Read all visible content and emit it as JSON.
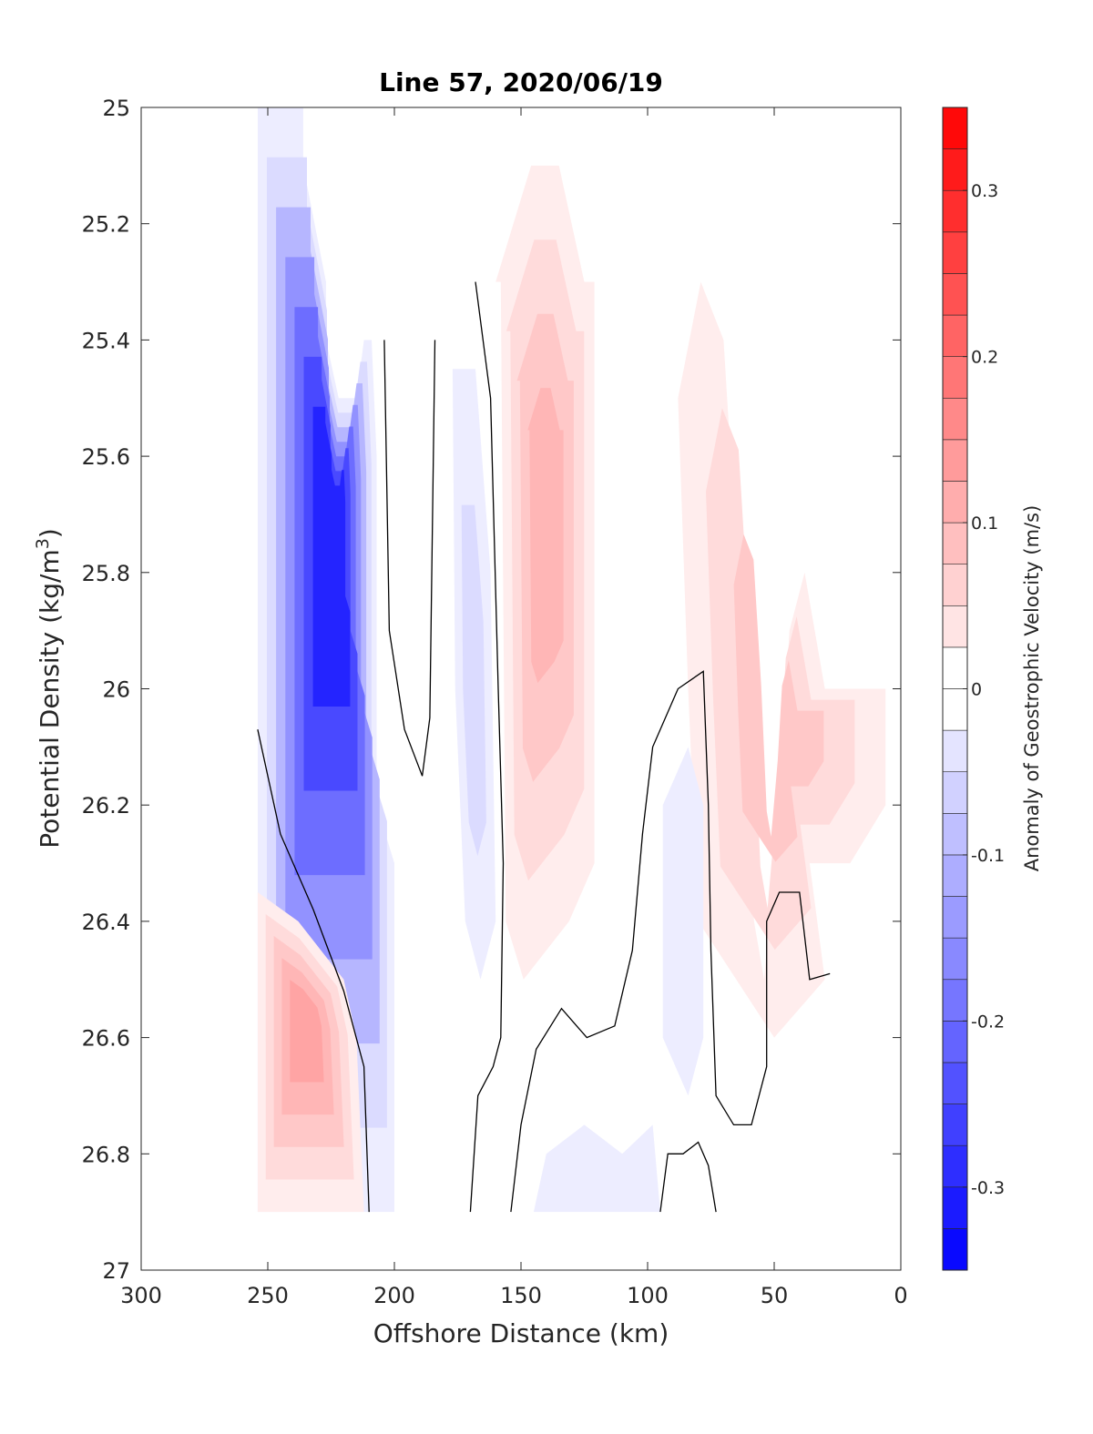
{
  "chart_data": {
    "type": "contourf",
    "title": "Line 57, 2020/06/19",
    "xlabel": "Offshore Distance (km)",
    "ylabel_main": "Potential Density (kg/m",
    "ylabel_sup": "3",
    "ylabel_close": ")",
    "colorbar_label": "Anomaly of Geostrophic Velocity (m/s)",
    "xlim": [
      300,
      0
    ],
    "ylim": [
      25,
      27
    ],
    "x_reversed": true,
    "y_reversed": true,
    "xticks": [
      300,
      250,
      200,
      150,
      100,
      50,
      0
    ],
    "xtick_labels": [
      "300",
      "250",
      "200",
      "150",
      "100",
      "50",
      "0"
    ],
    "yticks": [
      25,
      25.2,
      25.4,
      25.6,
      25.8,
      26,
      26.2,
      26.4,
      26.6,
      26.8,
      27
    ],
    "ytick_labels": [
      "25",
      "25.2",
      "25.4",
      "25.6",
      "25.8",
      "26",
      "26.2",
      "26.4",
      "26.6",
      "26.8",
      "27"
    ],
    "colorbar": {
      "range": [
        -0.35,
        0.35
      ],
      "step": 0.025,
      "ticks": [
        0.3,
        0.2,
        0.1,
        0,
        -0.1,
        -0.2,
        -0.3
      ],
      "tick_labels": [
        "0.3",
        "0.2",
        "0.1",
        "0",
        "-0.1",
        "-0.2",
        "-0.3"
      ],
      "negative_color": "#0000ff",
      "positive_color": "#ff0000",
      "neutral_color": "#ffffff"
    },
    "regions": [
      {
        "name": "offshore-negative-jet",
        "polygon": [
          [
            254,
            25.0
          ],
          [
            236,
            25.0
          ],
          [
            236,
            25.1
          ],
          [
            227,
            25.3
          ],
          [
            227,
            25.4
          ],
          [
            222,
            25.5
          ],
          [
            215,
            25.5
          ],
          [
            212,
            25.4
          ],
          [
            209,
            25.4
          ],
          [
            207,
            25.6
          ],
          [
            207,
            26.2
          ],
          [
            200,
            26.3
          ],
          [
            200,
            26.9
          ],
          [
            254,
            26.9
          ],
          [
            254,
            26.1
          ]
        ],
        "levels": [
          -0.025,
          -0.05,
          -0.1,
          -0.15,
          -0.2,
          -0.25,
          -0.3
        ]
      },
      {
        "name": "offshore-positive-lower",
        "polygon": [
          [
            254,
            26.35
          ],
          [
            254,
            26.9
          ],
          [
            212,
            26.9
          ],
          [
            215,
            26.6
          ],
          [
            220,
            26.5
          ],
          [
            238,
            26.4
          ],
          [
            254,
            26.35
          ]
        ],
        "levels": [
          0.025,
          0.05,
          0.075,
          0.1,
          0.125
        ]
      },
      {
        "name": "nearshore-positive-core",
        "polygon": [
          [
            160,
            25.3
          ],
          [
            146,
            25.1
          ],
          [
            135,
            25.1
          ],
          [
            125,
            25.3
          ],
          [
            121,
            25.3
          ],
          [
            121,
            26.3
          ],
          [
            131,
            26.4
          ],
          [
            149,
            26.5
          ],
          [
            156,
            26.4
          ],
          [
            158,
            25.3
          ]
        ],
        "levels": [
          0.025,
          0.05,
          0.075,
          0.1
        ]
      },
      {
        "name": "mid-negative-band",
        "polygon": [
          [
            177,
            25.45
          ],
          [
            168,
            25.45
          ],
          [
            162,
            25.8
          ],
          [
            160,
            26.4
          ],
          [
            166,
            26.5
          ],
          [
            172,
            26.4
          ],
          [
            176,
            26.0
          ]
        ],
        "levels": [
          -0.025,
          -0.05
        ]
      },
      {
        "name": "coastal-positive",
        "polygon": [
          [
            79,
            25.3
          ],
          [
            70,
            25.4
          ],
          [
            63,
            25.9
          ],
          [
            58,
            26.4
          ],
          [
            54,
            26.5
          ],
          [
            48,
            26.2
          ],
          [
            44,
            25.9
          ],
          [
            38,
            25.8
          ],
          [
            30,
            26.0
          ],
          [
            6,
            26.0
          ],
          [
            6,
            26.2
          ],
          [
            20,
            26.3
          ],
          [
            36,
            26.3
          ],
          [
            30,
            26.5
          ],
          [
            50,
            26.6
          ],
          [
            80,
            26.4
          ],
          [
            84,
            26.0
          ],
          [
            88,
            25.5
          ]
        ],
        "levels": [
          0.025,
          0.05,
          0.075
        ]
      },
      {
        "name": "deep-negative-nearshore",
        "polygon": [
          [
            84,
            26.1
          ],
          [
            94,
            26.2
          ],
          [
            94,
            26.6
          ],
          [
            84,
            26.7
          ],
          [
            78,
            26.6
          ],
          [
            78,
            26.2
          ]
        ],
        "levels": [
          -0.025
        ]
      },
      {
        "name": "deep-negative-mid",
        "polygon": [
          [
            145,
            26.9
          ],
          [
            95,
            26.9
          ],
          [
            98,
            26.75
          ],
          [
            110,
            26.8
          ],
          [
            125,
            26.75
          ],
          [
            140,
            26.8
          ]
        ],
        "levels": [
          -0.025
        ]
      }
    ],
    "zero_contours": [
      {
        "points": [
          [
            254,
            26.07
          ],
          [
            245,
            26.25
          ],
          [
            232,
            26.38
          ],
          [
            220,
            26.52
          ],
          [
            212,
            26.65
          ],
          [
            210,
            26.9
          ]
        ]
      },
      {
        "points": [
          [
            204,
            25.4
          ],
          [
            202,
            25.9
          ],
          [
            196,
            26.07
          ],
          [
            189,
            26.15
          ],
          [
            186,
            26.05
          ],
          [
            184,
            25.4
          ]
        ]
      },
      {
        "points": [
          [
            168,
            25.3
          ],
          [
            162,
            25.5
          ],
          [
            159,
            26.0
          ],
          [
            157,
            26.3
          ],
          [
            158,
            26.6
          ],
          [
            161,
            26.65
          ],
          [
            167,
            26.7
          ],
          [
            170,
            26.9
          ]
        ]
      },
      {
        "points": [
          [
            154,
            26.9
          ],
          [
            150,
            26.75
          ],
          [
            144,
            26.62
          ],
          [
            134,
            26.55
          ],
          [
            124,
            26.6
          ],
          [
            113,
            26.58
          ],
          [
            106,
            26.45
          ],
          [
            102,
            26.25
          ],
          [
            98,
            26.1
          ],
          [
            88,
            26.0
          ],
          [
            78,
            25.97
          ],
          [
            76,
            26.2
          ],
          [
            75,
            26.45
          ],
          [
            73,
            26.7
          ],
          [
            66,
            26.75
          ],
          [
            59,
            26.75
          ],
          [
            53,
            26.65
          ],
          [
            53,
            26.4
          ],
          [
            48,
            26.35
          ],
          [
            40,
            26.35
          ],
          [
            36,
            26.5
          ],
          [
            28,
            26.49
          ]
        ]
      },
      {
        "points": [
          [
            95,
            26.9
          ],
          [
            92,
            26.8
          ],
          [
            86,
            26.8
          ],
          [
            80,
            26.78
          ],
          [
            76,
            26.82
          ],
          [
            73,
            26.9
          ]
        ]
      }
    ]
  }
}
